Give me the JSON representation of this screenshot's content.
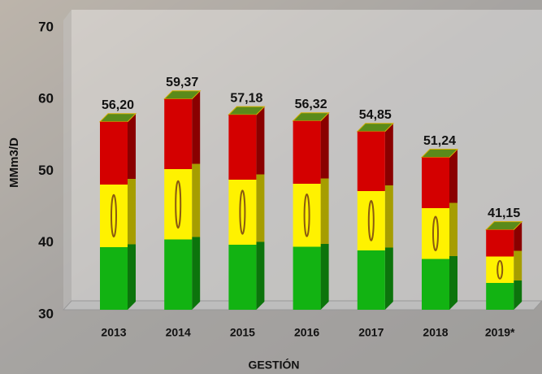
{
  "chart_data": {
    "type": "bar",
    "y_label": "MMm3/D",
    "x_label": "GESTIÓN",
    "categories": [
      "2013",
      "2014",
      "2015",
      "2016",
      "2017",
      "2018",
      "2019*"
    ],
    "values": [
      56.2,
      59.37,
      57.18,
      56.32,
      54.85,
      51.24,
      41.15
    ],
    "value_labels": [
      "56,20",
      "59,37",
      "57,18",
      "56,32",
      "54,85",
      "51,24",
      "41,15"
    ],
    "colors": [
      "#d40000",
      "#fff200",
      "#12b312"
    ],
    "ylim": [
      30,
      70
    ],
    "yticks": [
      30,
      40,
      50,
      60,
      70
    ]
  }
}
